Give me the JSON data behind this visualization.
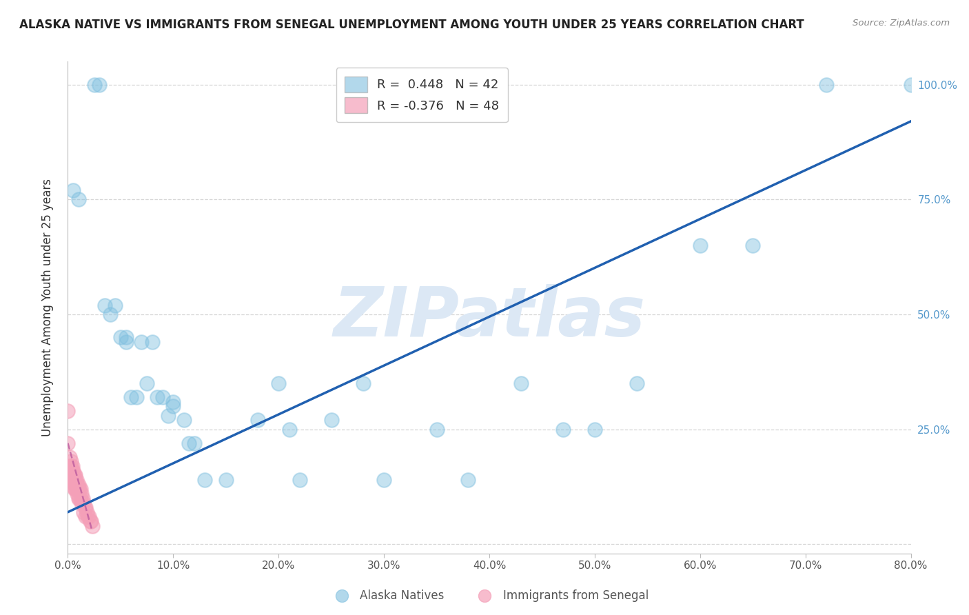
{
  "title": "ALASKA NATIVE VS IMMIGRANTS FROM SENEGAL UNEMPLOYMENT AMONG YOUTH UNDER 25 YEARS CORRELATION CHART",
  "source": "Source: ZipAtlas.com",
  "ylabel": "Unemployment Among Youth under 25 years",
  "watermark": "ZIPatlas",
  "legend1_label": "Alaska Natives",
  "legend2_label": "Immigrants from Senegal",
  "R_blue": 0.448,
  "N_blue": 42,
  "R_pink": -0.376,
  "N_pink": 48,
  "blue_color": "#7fbfdf",
  "pink_color": "#f4a0b8",
  "trend_blue": "#2060b0",
  "trend_pink": "#c060a0",
  "alaska_x": [
    0.005,
    0.01,
    0.025,
    0.03,
    0.035,
    0.04,
    0.045,
    0.05,
    0.055,
    0.055,
    0.06,
    0.065,
    0.07,
    0.075,
    0.08,
    0.085,
    0.09,
    0.095,
    0.1,
    0.1,
    0.11,
    0.115,
    0.12,
    0.13,
    0.15,
    0.18,
    0.2,
    0.21,
    0.22,
    0.25,
    0.28,
    0.3,
    0.35,
    0.38,
    0.43,
    0.47,
    0.5,
    0.54,
    0.6,
    0.65,
    0.72,
    0.8
  ],
  "alaska_y": [
    0.77,
    0.75,
    1.0,
    1.0,
    0.52,
    0.5,
    0.52,
    0.45,
    0.45,
    0.44,
    0.32,
    0.32,
    0.44,
    0.35,
    0.44,
    0.32,
    0.32,
    0.28,
    0.3,
    0.31,
    0.27,
    0.22,
    0.22,
    0.14,
    0.14,
    0.27,
    0.35,
    0.25,
    0.14,
    0.27,
    0.35,
    0.14,
    0.25,
    0.14,
    0.35,
    0.25,
    0.25,
    0.35,
    0.65,
    0.65,
    1.0,
    1.0
  ],
  "senegal_x": [
    0.0,
    0.0,
    0.002,
    0.002,
    0.003,
    0.003,
    0.003,
    0.003,
    0.004,
    0.004,
    0.004,
    0.005,
    0.005,
    0.005,
    0.006,
    0.006,
    0.006,
    0.006,
    0.007,
    0.007,
    0.007,
    0.007,
    0.008,
    0.008,
    0.008,
    0.009,
    0.009,
    0.01,
    0.01,
    0.01,
    0.011,
    0.011,
    0.012,
    0.012,
    0.013,
    0.013,
    0.014,
    0.015,
    0.015,
    0.016,
    0.017,
    0.017,
    0.018,
    0.019,
    0.02,
    0.021,
    0.022,
    0.023
  ],
  "senegal_y": [
    0.29,
    0.22,
    0.19,
    0.17,
    0.18,
    0.17,
    0.16,
    0.15,
    0.17,
    0.16,
    0.14,
    0.16,
    0.15,
    0.14,
    0.15,
    0.14,
    0.13,
    0.12,
    0.15,
    0.14,
    0.13,
    0.12,
    0.14,
    0.13,
    0.12,
    0.13,
    0.11,
    0.13,
    0.12,
    0.1,
    0.12,
    0.1,
    0.12,
    0.1,
    0.11,
    0.09,
    0.1,
    0.09,
    0.07,
    0.08,
    0.08,
    0.06,
    0.07,
    0.06,
    0.06,
    0.05,
    0.05,
    0.04
  ],
  "xlim": [
    0.0,
    0.8
  ],
  "ylim": [
    -0.02,
    1.05
  ],
  "xticks": [
    0.0,
    0.1,
    0.2,
    0.3,
    0.4,
    0.5,
    0.6,
    0.7,
    0.8
  ],
  "yticks_right": [
    0.25,
    0.5,
    0.75,
    1.0
  ],
  "grid_color": "#cccccc",
  "trend_blue_x0": 0.0,
  "trend_blue_y0": 0.07,
  "trend_blue_x1": 0.8,
  "trend_blue_y1": 0.92,
  "trend_pink_x0": 0.0,
  "trend_pink_y0": 0.22,
  "trend_pink_x1": 0.023,
  "trend_pink_y1": 0.03
}
